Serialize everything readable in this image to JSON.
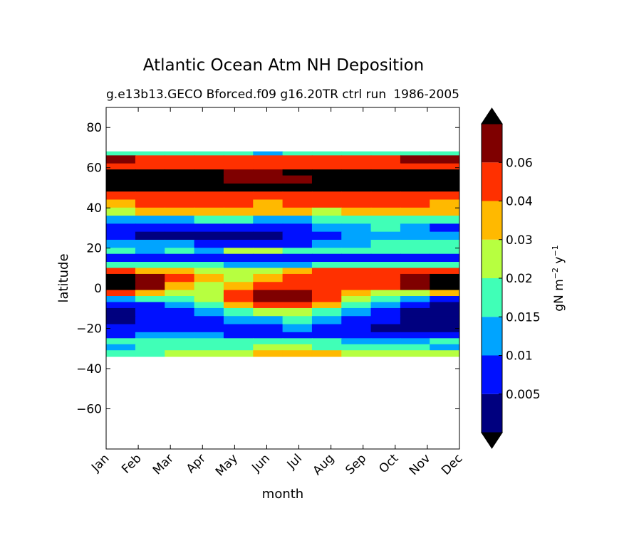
{
  "chart_data": {
    "type": "heatmap",
    "title": "Atlantic Ocean Atm NH Deposition",
    "subtitle_left": "g.e13b13.GECO Bforced.f09 g16.20TR ctrl run",
    "subtitle_right": "1986-2005",
    "xlabel": "month",
    "ylabel": "latitude",
    "x_ticks": [
      "Jan",
      "Feb",
      "Mar",
      "Apr",
      "May",
      "Jun",
      "Jul",
      "Aug",
      "Sep",
      "Oct",
      "Nov",
      "Dec"
    ],
    "y_ticks": [
      80,
      60,
      40,
      20,
      0,
      -20,
      -40,
      -60
    ],
    "y_tick_labels": [
      "80",
      "60",
      "40",
      "20",
      "0",
      "−20",
      "−40",
      "−60"
    ],
    "ylim": [
      -80,
      90
    ],
    "data_lat_range": [
      -34,
      68
    ],
    "colorbar": {
      "label_main": "gN m",
      "label_exp1": "−2",
      "label_mid": " y",
      "label_exp2": "−1",
      "levels": [
        0.005,
        0.01,
        0.015,
        0.02,
        0.03,
        0.04,
        0.06
      ],
      "tick_labels": [
        "0.005",
        "0.01",
        "0.015",
        "0.02",
        "0.03",
        "0.04",
        "0.06"
      ],
      "colors": [
        "#00007f",
        "#0010ff",
        "#00a4ff",
        "#40ffb7",
        "#b7ff40",
        "#ffb900",
        "#ff3000",
        "#7f0000"
      ],
      "extend": "both",
      "under_color": "#000000",
      "over_color": "#000000"
    },
    "bands": [
      {
        "lat": [
          66,
          68
        ],
        "level": [
          3,
          3,
          3,
          3,
          3,
          2,
          3,
          3,
          3,
          3,
          3,
          3
        ]
      },
      {
        "lat": [
          62,
          66
        ],
        "level": [
          7,
          6,
          6,
          6,
          6,
          6,
          6,
          6,
          6,
          6,
          7,
          7
        ]
      },
      {
        "lat": [
          59,
          62
        ],
        "level": [
          6,
          6,
          6,
          6,
          6,
          6,
          6,
          6,
          6,
          6,
          6,
          6
        ]
      },
      {
        "lat": [
          56,
          59
        ],
        "level": [
          8,
          8,
          8,
          8,
          7,
          7,
          8,
          8,
          8,
          8,
          8,
          8
        ]
      },
      {
        "lat": [
          52,
          56
        ],
        "level": [
          8,
          8,
          8,
          8,
          7,
          7,
          7,
          8,
          8,
          8,
          8,
          8
        ]
      },
      {
        "lat": [
          48,
          52
        ],
        "level": [
          8,
          8,
          8,
          8,
          8,
          8,
          8,
          8,
          8,
          8,
          8,
          8
        ]
      },
      {
        "lat": [
          44,
          48
        ],
        "level": [
          6,
          6,
          6,
          6,
          6,
          6,
          6,
          6,
          6,
          6,
          6,
          6
        ]
      },
      {
        "lat": [
          40,
          44
        ],
        "level": [
          5,
          6,
          6,
          6,
          6,
          5,
          6,
          6,
          6,
          6,
          6,
          5
        ]
      },
      {
        "lat": [
          36,
          40
        ],
        "level": [
          4,
          5,
          5,
          5,
          5,
          5,
          5,
          4,
          5,
          5,
          5,
          5
        ]
      },
      {
        "lat": [
          32,
          36
        ],
        "level": [
          2,
          2,
          2,
          3,
          3,
          2,
          2,
          3,
          3,
          3,
          3,
          3
        ]
      },
      {
        "lat": [
          28,
          32
        ],
        "level": [
          1,
          1,
          1,
          1,
          1,
          1,
          1,
          2,
          2,
          3,
          2,
          1
        ]
      },
      {
        "lat": [
          24,
          28
        ],
        "level": [
          1,
          0,
          0,
          0,
          0,
          0,
          1,
          1,
          2,
          2,
          2,
          2
        ]
      },
      {
        "lat": [
          20,
          24
        ],
        "level": [
          2,
          2,
          2,
          1,
          1,
          1,
          1,
          2,
          2,
          3,
          3,
          3
        ]
      },
      {
        "lat": [
          17,
          20
        ],
        "level": [
          3,
          2,
          3,
          2,
          4,
          4,
          3,
          3,
          3,
          3,
          3,
          3
        ]
      },
      {
        "lat": [
          13,
          17
        ],
        "level": [
          1,
          1,
          1,
          1,
          1,
          1,
          1,
          1,
          1,
          1,
          1,
          1
        ]
      },
      {
        "lat": [
          10,
          13
        ],
        "level": [
          3,
          3,
          3,
          3,
          2,
          2,
          2,
          3,
          3,
          3,
          3,
          3
        ]
      },
      {
        "lat": [
          7,
          10
        ],
        "level": [
          6,
          5,
          5,
          4,
          4,
          4,
          5,
          6,
          6,
          6,
          6,
          6
        ]
      },
      {
        "lat": [
          3,
          7
        ],
        "level": [
          8,
          7,
          6,
          5,
          4,
          5,
          6,
          6,
          6,
          6,
          7,
          8
        ]
      },
      {
        "lat": [
          -1,
          3
        ],
        "level": [
          8,
          7,
          5,
          4,
          5,
          6,
          6,
          6,
          6,
          6,
          7,
          8
        ]
      },
      {
        "lat": [
          -4,
          -1
        ],
        "level": [
          6,
          5,
          4,
          4,
          6,
          7,
          7,
          6,
          5,
          4,
          4,
          5
        ]
      },
      {
        "lat": [
          -7,
          -4
        ],
        "level": [
          2,
          3,
          3,
          4,
          6,
          7,
          7,
          6,
          4,
          3,
          2,
          1
        ]
      },
      {
        "lat": [
          -10,
          -7
        ],
        "level": [
          1,
          1,
          2,
          3,
          5,
          6,
          6,
          5,
          3,
          2,
          1,
          0
        ]
      },
      {
        "lat": [
          -14,
          -10
        ],
        "level": [
          0,
          1,
          1,
          2,
          3,
          4,
          4,
          3,
          2,
          1,
          0,
          0
        ]
      },
      {
        "lat": [
          -18,
          -14
        ],
        "level": [
          0,
          1,
          1,
          1,
          2,
          2,
          3,
          2,
          1,
          1,
          0,
          0
        ]
      },
      {
        "lat": [
          -22,
          -18
        ],
        "level": [
          1,
          1,
          1,
          1,
          1,
          1,
          2,
          1,
          1,
          0,
          0,
          0
        ]
      },
      {
        "lat": [
          -25,
          -22
        ],
        "level": [
          1,
          2,
          2,
          2,
          1,
          1,
          1,
          1,
          1,
          1,
          1,
          1
        ]
      },
      {
        "lat": [
          -28,
          -25
        ],
        "level": [
          3,
          3,
          3,
          3,
          3,
          3,
          3,
          3,
          2,
          2,
          2,
          3
        ]
      },
      {
        "lat": [
          -31,
          -28
        ],
        "level": [
          2,
          3,
          3,
          3,
          3,
          4,
          4,
          3,
          3,
          3,
          3,
          2
        ]
      },
      {
        "lat": [
          -34,
          -31
        ],
        "level": [
          3,
          3,
          4,
          4,
          4,
          5,
          5,
          5,
          4,
          4,
          4,
          4
        ]
      }
    ]
  }
}
